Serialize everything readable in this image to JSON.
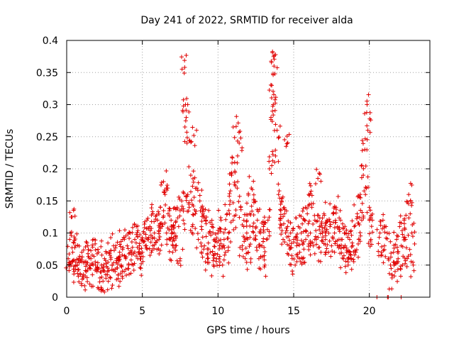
{
  "chart_data": {
    "type": "scatter",
    "title": "Day 241 of 2022, SRMTID for receiver alda",
    "xlabel": "GPS time / hours",
    "ylabel": "SRMTID / TECUs",
    "xlim": [
      0,
      24
    ],
    "ylim": [
      0,
      0.4
    ],
    "xticks": [
      0,
      5,
      10,
      15,
      20
    ],
    "xtick_labels": [
      "0",
      "5",
      "10",
      "15",
      "20"
    ],
    "yticks": [
      0,
      0.05,
      0.1,
      0.15,
      0.2,
      0.25,
      0.3,
      0.35,
      0.4
    ],
    "ytick_labels": [
      "0",
      "0.05",
      "0.1",
      "0.15",
      "0.2",
      "0.25",
      "0.3",
      "0.35",
      "0.4"
    ],
    "grid": true,
    "marker": "+",
    "marker_color": "#e00000",
    "series": [
      {
        "name": "SRMTID",
        "points": [
          [
            0.1,
            0.06
          ],
          [
            0.2,
            0.09
          ],
          [
            0.3,
            0.05
          ],
          [
            0.35,
            0.125
          ],
          [
            0.4,
            0.07
          ],
          [
            0.5,
            0.04
          ],
          [
            0.6,
            0.08
          ],
          [
            0.7,
            0.05
          ],
          [
            0.8,
            0.06
          ],
          [
            0.9,
            0.035
          ],
          [
            1.0,
            0.07
          ],
          [
            1.1,
            0.03
          ],
          [
            1.2,
            0.055
          ],
          [
            1.3,
            0.04
          ],
          [
            1.4,
            0.08
          ],
          [
            1.5,
            0.045
          ],
          [
            1.6,
            0.06
          ],
          [
            1.7,
            0.035
          ],
          [
            1.8,
            0.09
          ],
          [
            1.9,
            0.05
          ],
          [
            2.0,
            0.04
          ],
          [
            2.1,
            0.07
          ],
          [
            2.2,
            0.03
          ],
          [
            2.3,
            0.05
          ],
          [
            2.4,
            0.025
          ],
          [
            2.5,
            0.06
          ],
          [
            2.6,
            0.035
          ],
          [
            2.7,
            0.04
          ],
          [
            2.8,
            0.07
          ],
          [
            2.9,
            0.03
          ],
          [
            3.0,
            0.05
          ],
          [
            3.1,
            0.08
          ],
          [
            3.2,
            0.04
          ],
          [
            3.3,
            0.06
          ],
          [
            3.4,
            0.035
          ],
          [
            3.5,
            0.07
          ],
          [
            3.6,
            0.05
          ],
          [
            3.7,
            0.09
          ],
          [
            3.8,
            0.04
          ],
          [
            3.9,
            0.06
          ],
          [
            4.0,
            0.08
          ],
          [
            4.1,
            0.05
          ],
          [
            4.2,
            0.1
          ],
          [
            4.3,
            0.07
          ],
          [
            4.4,
            0.05
          ],
          [
            4.5,
            0.09
          ],
          [
            4.6,
            0.11
          ],
          [
            4.7,
            0.06
          ],
          [
            4.8,
            0.08
          ],
          [
            4.9,
            0.045
          ],
          [
            5.0,
            0.07
          ],
          [
            5.1,
            0.1
          ],
          [
            5.2,
            0.08
          ],
          [
            5.3,
            0.12
          ],
          [
            5.4,
            0.09
          ],
          [
            5.5,
            0.11
          ],
          [
            5.6,
            0.07
          ],
          [
            5.7,
            0.13
          ],
          [
            5.8,
            0.1
          ],
          [
            5.9,
            0.085
          ],
          [
            6.0,
            0.12
          ],
          [
            6.1,
            0.09
          ],
          [
            6.2,
            0.14
          ],
          [
            6.3,
            0.11
          ],
          [
            6.4,
            0.18
          ],
          [
            6.5,
            0.16
          ],
          [
            6.6,
            0.1
          ],
          [
            6.7,
            0.13
          ],
          [
            6.8,
            0.09
          ],
          [
            6.9,
            0.12
          ],
          [
            7.0,
            0.07
          ],
          [
            7.1,
            0.1
          ],
          [
            7.2,
            0.08
          ],
          [
            7.3,
            0.14
          ],
          [
            7.4,
            0.11
          ],
          [
            7.5,
            0.06
          ],
          [
            7.6,
            0.15
          ],
          [
            7.7,
            0.12
          ],
          [
            7.8,
            0.358
          ],
          [
            7.85,
            0.3
          ],
          [
            7.9,
            0.28
          ],
          [
            7.95,
            0.24
          ],
          [
            8.0,
            0.16
          ],
          [
            8.1,
            0.14
          ],
          [
            8.2,
            0.19
          ],
          [
            8.3,
            0.11
          ],
          [
            8.4,
            0.252
          ],
          [
            8.5,
            0.13
          ],
          [
            8.6,
            0.17
          ],
          [
            8.7,
            0.09
          ],
          [
            8.8,
            0.15
          ],
          [
            8.9,
            0.11
          ],
          [
            9.0,
            0.13
          ],
          [
            9.1,
            0.08
          ],
          [
            9.2,
            0.12
          ],
          [
            9.3,
            0.06
          ],
          [
            9.4,
            0.1
          ],
          [
            9.5,
            0.07
          ],
          [
            9.6,
            0.11
          ],
          [
            9.7,
            0.05
          ],
          [
            9.8,
            0.09
          ],
          [
            9.9,
            0.06
          ],
          [
            10.0,
            0.1
          ],
          [
            10.1,
            0.08
          ],
          [
            10.2,
            0.12
          ],
          [
            10.3,
            0.05
          ],
          [
            10.4,
            0.09
          ],
          [
            10.5,
            0.07
          ],
          [
            10.6,
            0.13
          ],
          [
            10.7,
            0.1
          ],
          [
            10.8,
            0.15
          ],
          [
            10.9,
            0.19
          ],
          [
            11.0,
            0.12
          ],
          [
            11.1,
            0.21
          ],
          [
            11.2,
            0.266
          ],
          [
            11.3,
            0.18
          ],
          [
            11.4,
            0.24
          ],
          [
            11.5,
            0.14
          ],
          [
            11.6,
            0.08
          ],
          [
            11.7,
            0.11
          ],
          [
            11.8,
            0.06
          ],
          [
            11.9,
            0.1
          ],
          [
            12.0,
            0.07
          ],
          [
            12.1,
            0.13
          ],
          [
            12.2,
            0.17
          ],
          [
            12.3,
            0.11
          ],
          [
            12.4,
            0.15
          ],
          [
            12.5,
            0.09
          ],
          [
            12.6,
            0.12
          ],
          [
            12.7,
            0.06
          ],
          [
            12.8,
            0.1
          ],
          [
            12.9,
            0.08
          ],
          [
            13.0,
            0.11
          ],
          [
            13.1,
            0.05
          ],
          [
            13.2,
            0.09
          ],
          [
            13.3,
            0.12
          ],
          [
            13.4,
            0.2
          ],
          [
            13.5,
            0.28
          ],
          [
            13.55,
            0.33
          ],
          [
            13.6,
            0.381
          ],
          [
            13.65,
            0.3
          ],
          [
            13.7,
            0.36
          ],
          [
            13.8,
            0.22
          ],
          [
            13.9,
            0.26
          ],
          [
            14.0,
            0.16
          ],
          [
            14.1,
            0.12
          ],
          [
            14.2,
            0.15
          ],
          [
            14.3,
            0.09
          ],
          [
            14.4,
            0.13
          ],
          [
            14.5,
            0.235
          ],
          [
            14.6,
            0.11
          ],
          [
            14.7,
            0.08
          ],
          [
            14.8,
            0.1
          ],
          [
            14.9,
            0.06
          ],
          [
            15.0,
            0.09
          ],
          [
            15.1,
            0.05
          ],
          [
            15.2,
            0.08
          ],
          [
            15.3,
            0.11
          ],
          [
            15.4,
            0.07
          ],
          [
            15.5,
            0.1
          ],
          [
            15.6,
            0.06
          ],
          [
            15.7,
            0.12
          ],
          [
            15.8,
            0.09
          ],
          [
            15.9,
            0.13
          ],
          [
            16.0,
            0.16
          ],
          [
            16.1,
            0.1
          ],
          [
            16.2,
            0.14
          ],
          [
            16.3,
            0.08
          ],
          [
            16.4,
            0.12
          ],
          [
            16.5,
            0.09
          ],
          [
            16.6,
            0.185
          ],
          [
            16.7,
            0.11
          ],
          [
            16.8,
            0.07
          ],
          [
            16.9,
            0.1
          ],
          [
            17.0,
            0.13
          ],
          [
            17.1,
            0.09
          ],
          [
            17.2,
            0.12
          ],
          [
            17.3,
            0.07
          ],
          [
            17.4,
            0.11
          ],
          [
            17.5,
            0.08
          ],
          [
            17.6,
            0.13
          ],
          [
            17.7,
            0.1
          ],
          [
            17.8,
            0.14
          ],
          [
            17.9,
            0.11
          ],
          [
            18.0,
            0.08
          ],
          [
            18.1,
            0.12
          ],
          [
            18.2,
            0.09
          ],
          [
            18.3,
            0.06
          ],
          [
            18.4,
            0.1
          ],
          [
            18.5,
            0.07
          ],
          [
            18.6,
            0.05
          ],
          [
            18.7,
            0.09
          ],
          [
            18.8,
            0.06
          ],
          [
            18.9,
            0.08
          ],
          [
            19.0,
            0.11
          ],
          [
            19.1,
            0.07
          ],
          [
            19.2,
            0.13
          ],
          [
            19.3,
            0.09
          ],
          [
            19.4,
            0.16
          ],
          [
            19.5,
            0.12
          ],
          [
            19.6,
            0.19
          ],
          [
            19.7,
            0.23
          ],
          [
            19.8,
            0.17
          ],
          [
            19.85,
            0.3
          ],
          [
            19.9,
            0.26
          ],
          [
            20.0,
            0.14
          ],
          [
            20.1,
            0.09
          ],
          [
            20.2,
            0.12
          ],
          [
            20.7,
            0.1
          ],
          [
            20.8,
            0.07
          ],
          [
            20.9,
            0.12
          ],
          [
            21.0,
            0.08
          ],
          [
            21.1,
            0.11
          ],
          [
            21.4,
            0.05
          ],
          [
            21.5,
            0.03
          ],
          [
            21.6,
            0.07
          ],
          [
            21.7,
            0.04
          ],
          [
            21.8,
            0.09
          ],
          [
            21.9,
            0.06
          ],
          [
            22.0,
            0.11
          ],
          [
            22.1,
            0.08
          ],
          [
            22.2,
            0.05
          ],
          [
            22.3,
            0.12
          ],
          [
            22.4,
            0.09
          ],
          [
            22.5,
            0.06
          ],
          [
            22.6,
            0.16
          ],
          [
            22.7,
            0.13
          ],
          [
            22.8,
            0.1
          ],
          [
            22.9,
            0.05
          ]
        ]
      }
    ]
  }
}
